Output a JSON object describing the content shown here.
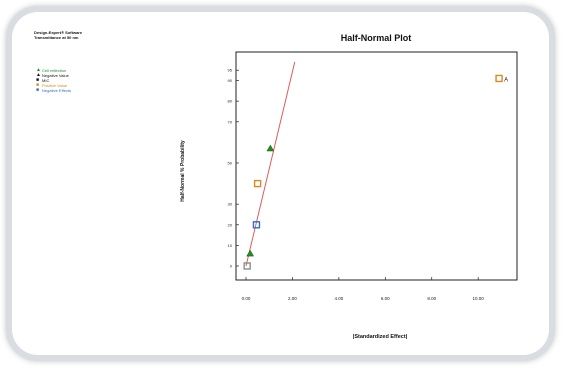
{
  "meta": {
    "line1": "Design-Expert® Software",
    "line2": "Transmittance at 50 nm"
  },
  "legend": [
    {
      "symbol": "▲",
      "label": "Cell reflection",
      "color": "#1f8f1f"
    },
    {
      "symbol": "▲",
      "label": "Negative Value",
      "color": "#111111"
    },
    {
      "symbol": "■",
      "label": "MIC",
      "color": "#111111"
    },
    {
      "symbol": "■",
      "label": "Positive Value",
      "color": "#d98a1e"
    },
    {
      "symbol": "■",
      "label": "Negative Effects",
      "color": "#2e6fd0"
    }
  ],
  "chart_data": {
    "type": "scatter",
    "title": "Half-Normal Plot",
    "xlabel": "|Standardized Effect|",
    "ylabel": "Half-Normal % Probability",
    "xlim": [
      0,
      11.5
    ],
    "ylim": [
      0,
      99
    ],
    "xticks": [
      "0.00",
      "2.00",
      "4.00",
      "6.00",
      "8.00",
      "10.00"
    ],
    "xtick_values": [
      0,
      2,
      4,
      6,
      8,
      10
    ],
    "yticks": [
      "0",
      "10",
      "20",
      "30",
      "50",
      "70",
      "80",
      "90",
      "95"
    ],
    "ytick_values": [
      0,
      10,
      20,
      30,
      50,
      70,
      80,
      90,
      95
    ],
    "grid": false,
    "fit_line": {
      "x": [
        0.0,
        2.1
      ],
      "y": [
        0,
        99
      ],
      "color": "#e05a5a"
    },
    "points": [
      {
        "x": 0.05,
        "y": 0,
        "marker": "square",
        "color": "#8c8c8c",
        "label": ""
      },
      {
        "x": 0.18,
        "y": 6,
        "marker": "triangle",
        "color": "#1f8f1f",
        "label": ""
      },
      {
        "x": 0.45,
        "y": 20,
        "marker": "square",
        "color": "#2e6fd0",
        "label": ""
      },
      {
        "x": 0.5,
        "y": 40,
        "marker": "square",
        "color": "#d98a1e",
        "label": ""
      },
      {
        "x": 1.05,
        "y": 57,
        "marker": "triangle",
        "color": "#1f8f1f",
        "label": ""
      },
      {
        "x": 10.9,
        "y": 91,
        "marker": "square",
        "color": "#d98a1e",
        "label": "A"
      }
    ]
  }
}
